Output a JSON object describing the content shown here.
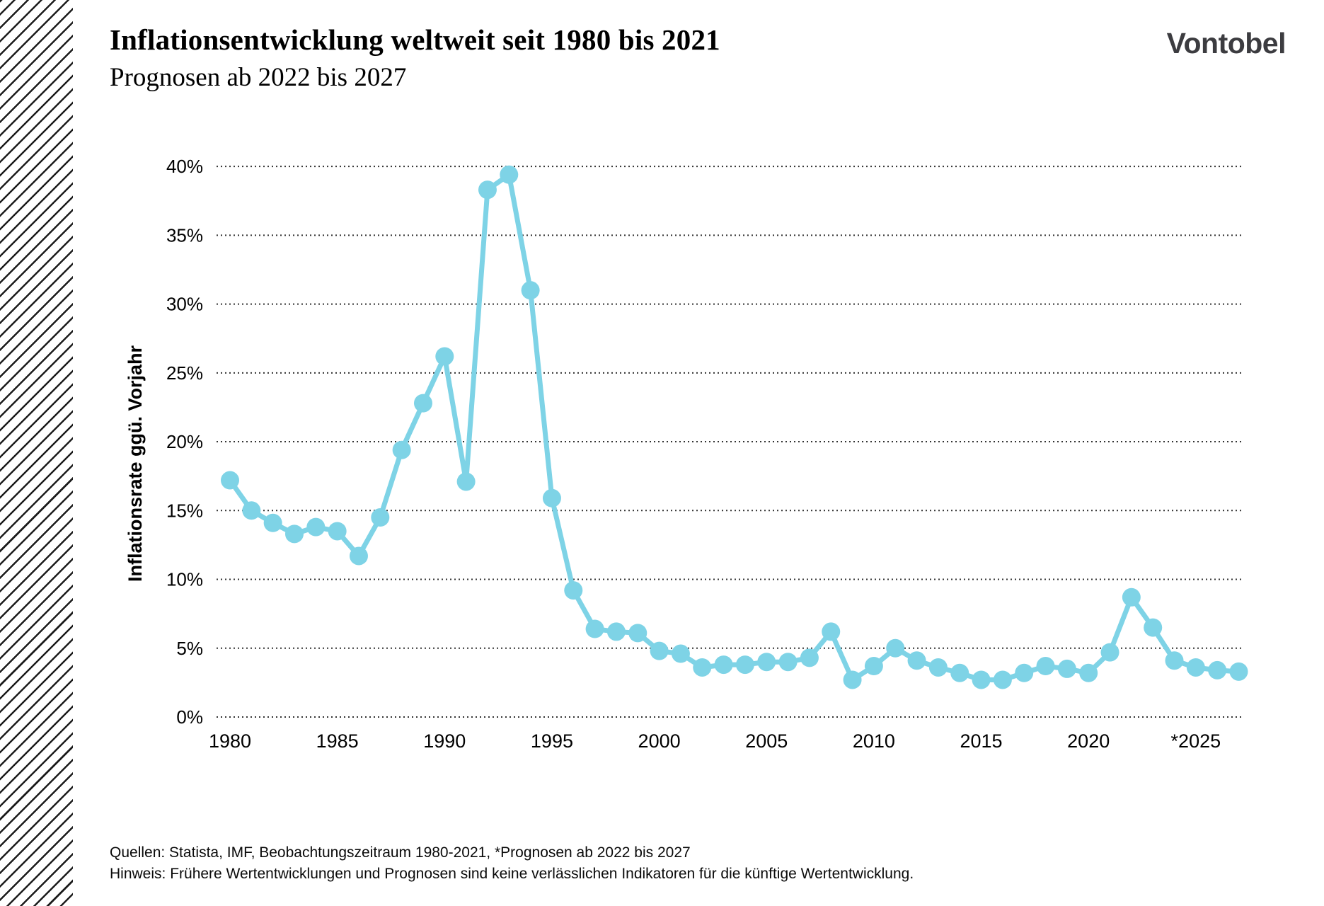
{
  "page": {
    "title": "Inflationsentwicklung weltweit seit 1980 bis 2021",
    "subtitle": "Prognosen ab 2022 bis 2027",
    "brand": "Vontobel"
  },
  "footer": {
    "line1": "Quellen: Statista, IMF, Beobachtungszeitraum 1980-2021, *Prognosen ab 2022 bis 2027",
    "line2": "Hinweis: Frühere Wertentwicklungen und Prognosen sind keine verlässlichen Indikatoren für die künftige Wertentwicklung."
  },
  "chart_data": {
    "type": "line",
    "title": "Inflationsentwicklung weltweit seit 1980 bis 2021, Prognosen ab 2022 bis 2027",
    "xlabel": "",
    "ylabel": "Inflationsrate ggü. Vorjahr",
    "ylim": [
      0,
      40
    ],
    "grid": "horizontal-dotted",
    "legend": "none",
    "series_color": "#7ed3e6",
    "y_ticks": [
      {
        "v": 0,
        "label": "0%"
      },
      {
        "v": 5,
        "label": "5%"
      },
      {
        "v": 10,
        "label": "10%"
      },
      {
        "v": 15,
        "label": "15%"
      },
      {
        "v": 20,
        "label": "20%"
      },
      {
        "v": 25,
        "label": "25%"
      },
      {
        "v": 30,
        "label": "30%"
      },
      {
        "v": 35,
        "label": "35%"
      },
      {
        "v": 40,
        "label": "40%"
      }
    ],
    "x_ticks": [
      {
        "year": 1980,
        "label": "1980"
      },
      {
        "year": 1985,
        "label": "1985"
      },
      {
        "year": 1990,
        "label": "1990"
      },
      {
        "year": 1995,
        "label": "1995"
      },
      {
        "year": 2000,
        "label": "2000"
      },
      {
        "year": 2005,
        "label": "2005"
      },
      {
        "year": 2010,
        "label": "2010"
      },
      {
        "year": 2015,
        "label": "2015"
      },
      {
        "year": 2020,
        "label": "2020"
      },
      {
        "year": 2025,
        "label": "*2025"
      }
    ],
    "x": [
      1980,
      1981,
      1982,
      1983,
      1984,
      1985,
      1986,
      1987,
      1988,
      1989,
      1990,
      1991,
      1992,
      1993,
      1994,
      1995,
      1996,
      1997,
      1998,
      1999,
      2000,
      2001,
      2002,
      2003,
      2004,
      2005,
      2006,
      2007,
      2008,
      2009,
      2010,
      2011,
      2012,
      2013,
      2014,
      2015,
      2016,
      2017,
      2018,
      2019,
      2020,
      2021,
      2022,
      2023,
      2024,
      2025,
      2026,
      2027
    ],
    "values": [
      17.2,
      15.0,
      14.1,
      13.3,
      13.8,
      13.5,
      11.7,
      14.5,
      19.4,
      22.8,
      26.2,
      17.1,
      38.3,
      39.4,
      31.0,
      15.9,
      9.2,
      6.4,
      6.2,
      6.1,
      4.8,
      4.6,
      3.6,
      3.8,
      3.8,
      4.0,
      4.0,
      4.3,
      6.2,
      2.7,
      3.7,
      5.0,
      4.1,
      3.6,
      3.2,
      2.7,
      2.7,
      3.2,
      3.7,
      3.5,
      3.2,
      4.7,
      8.7,
      6.5,
      4.1,
      3.6,
      3.4,
      3.3
    ]
  }
}
